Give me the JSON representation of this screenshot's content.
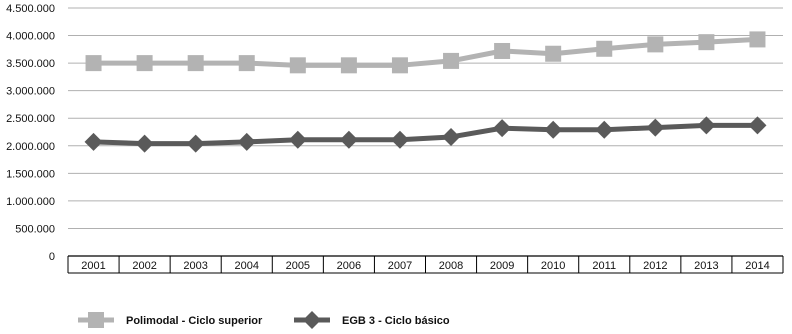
{
  "chart_data": {
    "type": "line",
    "title": "",
    "xlabel": "",
    "ylabel": "",
    "categories": [
      "2001",
      "2002",
      "2003",
      "2004",
      "2005",
      "2006",
      "2007",
      "2008",
      "2009",
      "2010",
      "2011",
      "2012",
      "2013",
      "2014"
    ],
    "ylim": [
      0,
      4500000
    ],
    "yticks": [
      0,
      500000,
      1000000,
      1500000,
      2000000,
      2500000,
      3000000,
      3500000,
      4000000,
      4500000
    ],
    "ytick_labels": [
      "0",
      "500.000",
      "1.000.000",
      "1.500.000",
      "2.000.000",
      "2.500.000",
      "3.000.000",
      "3.500.000",
      "4.000.000",
      "4.500.000"
    ],
    "grid": true,
    "legend_position": "bottom-left",
    "series": [
      {
        "name": "Polimodal - Ciclo superior",
        "color": "#b3b3b3",
        "marker": "square",
        "values": [
          3500000,
          3500000,
          3500000,
          3500000,
          3460000,
          3460000,
          3460000,
          3540000,
          3720000,
          3670000,
          3760000,
          3840000,
          3880000,
          3930000
        ]
      },
      {
        "name": "EGB 3 - Ciclo básico",
        "color": "#5a5a5a",
        "marker": "diamond",
        "values": [
          2070000,
          2040000,
          2040000,
          2070000,
          2110000,
          2110000,
          2110000,
          2160000,
          2320000,
          2290000,
          2290000,
          2330000,
          2370000,
          2370000
        ]
      }
    ]
  }
}
